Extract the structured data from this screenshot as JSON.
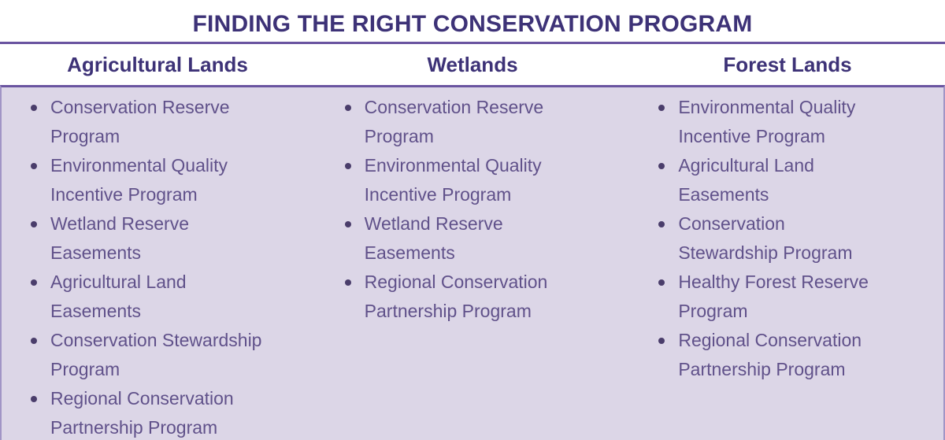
{
  "title": "FINDING THE RIGHT CONSERVATION PROGRAM",
  "colors": {
    "page_bg": "#ffffff",
    "body_bg": "#dcd6e7",
    "title_text": "#3d3277",
    "header_text": "#3d3277",
    "body_text": "#60518a",
    "bullet": "#4a3d6b",
    "rule": "#6a54a0",
    "side_border": "#a195c6",
    "bottom_border": "#584a92"
  },
  "columns": [
    {
      "header": "Agricultural Lands",
      "items": [
        "Conservation Reserve\nProgram",
        "Environmental Quality\nIncentive Program",
        "Wetland Reserve\nEasements",
        "Agricultural Land\nEasements",
        "Conservation Stewardship\nProgram",
        "Regional Conservation\nPartnership Program"
      ]
    },
    {
      "header": "Wetlands",
      "items": [
        "Conservation Reserve\nProgram",
        "Environmental Quality\nIncentive Program",
        "Wetland Reserve\nEasements",
        "Regional Conservation\nPartnership Program"
      ]
    },
    {
      "header": "Forest Lands",
      "items": [
        "Environmental Quality\nIncentive Program",
        "Agricultural Land\nEasements",
        "Conservation\nStewardship Program",
        "Healthy Forest Reserve\nProgram",
        "Regional Conservation\nPartnership Program"
      ]
    }
  ]
}
